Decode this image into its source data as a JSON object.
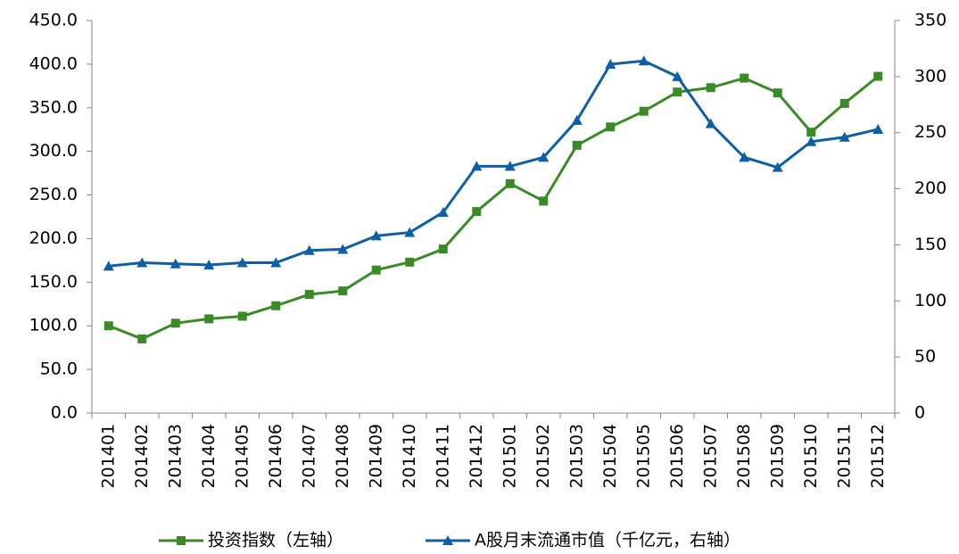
{
  "chart_data": {
    "type": "line",
    "categories": [
      "201401",
      "201402",
      "201403",
      "201404",
      "201405",
      "201406",
      "201407",
      "201408",
      "201409",
      "201410",
      "201411",
      "201412",
      "201501",
      "201502",
      "201503",
      "201504",
      "201505",
      "201506",
      "201507",
      "201508",
      "201509",
      "201510",
      "201511",
      "201512"
    ],
    "series": [
      {
        "name": "投资指数（左轴）",
        "color": "#3a8a26",
        "marker": "square",
        "values": [
          100,
          85,
          103,
          108,
          111,
          123,
          136,
          140,
          164,
          173,
          188,
          231,
          263,
          243,
          307,
          328,
          346,
          368,
          373,
          384,
          367,
          322,
          355,
          386
        ]
      },
      {
        "name": "A股月末流通市值（千亿元，右轴）",
        "color": "#0d5fa6",
        "marker": "triangle",
        "axis": "y2",
        "values": [
          131,
          134,
          133,
          132,
          134,
          134,
          145,
          146,
          158,
          161,
          179,
          220,
          220,
          228,
          261,
          311,
          314,
          300,
          258,
          228,
          219,
          242,
          246,
          253
        ]
      }
    ],
    "ylim": [
      0,
      450
    ],
    "yticks": [
      {
        "value": 0,
        "label": "0.0"
      },
      {
        "value": 50,
        "label": "50.0"
      },
      {
        "value": 100,
        "label": "100.0"
      },
      {
        "value": 150,
        "label": "150.0"
      },
      {
        "value": 200,
        "label": "200.0"
      },
      {
        "value": 250,
        "label": "250.0"
      },
      {
        "value": 300,
        "label": "300.0"
      },
      {
        "value": 350,
        "label": "350.0"
      },
      {
        "value": 400,
        "label": "400.0"
      },
      {
        "value": 450,
        "label": "450.0"
      }
    ],
    "y2lim": [
      0,
      350
    ],
    "y2ticks": [
      0,
      50,
      100,
      150,
      200,
      250,
      300,
      350
    ],
    "grid": false,
    "legend": "bottom"
  }
}
